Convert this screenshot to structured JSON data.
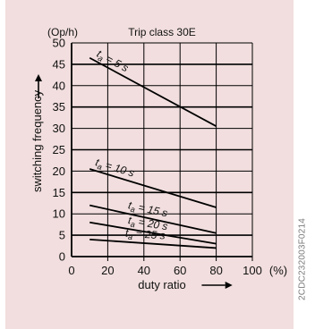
{
  "chart_data": {
    "type": "line",
    "title": "Trip class 30E",
    "ylabel": "switching frequency",
    "y_unit": "(Op/h)",
    "xlabel": "duty ratio",
    "x_unit": "(%)",
    "xlim": [
      0,
      100
    ],
    "ylim": [
      0,
      50
    ],
    "x_ticks": [
      0,
      20,
      40,
      60,
      80,
      100
    ],
    "y_ticks": [
      0,
      5,
      10,
      15,
      20,
      25,
      30,
      35,
      40,
      45,
      50
    ],
    "grid": true,
    "series": [
      {
        "name": "ta = 5 s",
        "label_sub": "a",
        "label_rest": " = 5 s",
        "x": [
          10,
          80
        ],
        "y": [
          46.5,
          30.5
        ]
      },
      {
        "name": "ta = 10 s",
        "label_sub": "a",
        "label_rest": " = 10 s",
        "x": [
          10,
          80
        ],
        "y": [
          20.5,
          11.5
        ]
      },
      {
        "name": "ta = 15 s",
        "label_sub": "a",
        "label_rest": " = 15 s",
        "x": [
          10,
          80
        ],
        "y": [
          12,
          5.5
        ]
      },
      {
        "name": "ta = 20 s",
        "label_sub": "a",
        "label_rest": " = 20 s",
        "x": [
          10,
          80
        ],
        "y": [
          8,
          3
        ]
      },
      {
        "name": "ta = 25 s",
        "label_sub": "a",
        "label_rest": " = 25 s",
        "x": [
          10,
          80
        ],
        "y": [
          4,
          2
        ]
      }
    ]
  },
  "side_code": "2CDC232003F0214"
}
